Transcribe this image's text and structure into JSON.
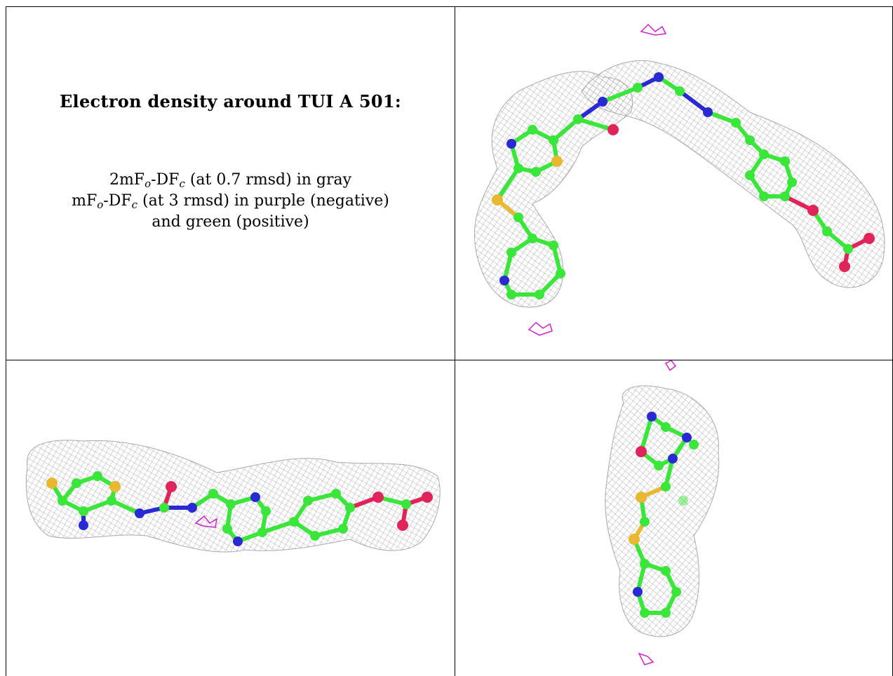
{
  "caption": {
    "title": "Electron density around TUI A 501:",
    "line1": {
      "a": "2mF",
      "sub1": "o",
      "b": "-DF",
      "sub2": "c",
      "c": " (at 0.7 rmsd) in gray"
    },
    "line2": {
      "a": "mF",
      "sub1": "o",
      "b": "-DF",
      "sub2": "c",
      "c": " (at 3 rmsd) in purple (negative)"
    },
    "line3": "and green (positive)"
  },
  "colors": {
    "mesh": "#9a9a9a",
    "carbon": "#39e639",
    "nitrogen": "#2a2ad4",
    "oxygen": "#e0245a",
    "sulfur": "#e8b830",
    "negative_density": "#d020d0",
    "border": "#000000"
  },
  "views": [
    {
      "id": "view-top-right",
      "icon": "ligand-density-view-1"
    },
    {
      "id": "view-bottom-left",
      "icon": "ligand-density-view-2"
    },
    {
      "id": "view-bottom-right",
      "icon": "ligand-density-view-3"
    }
  ]
}
